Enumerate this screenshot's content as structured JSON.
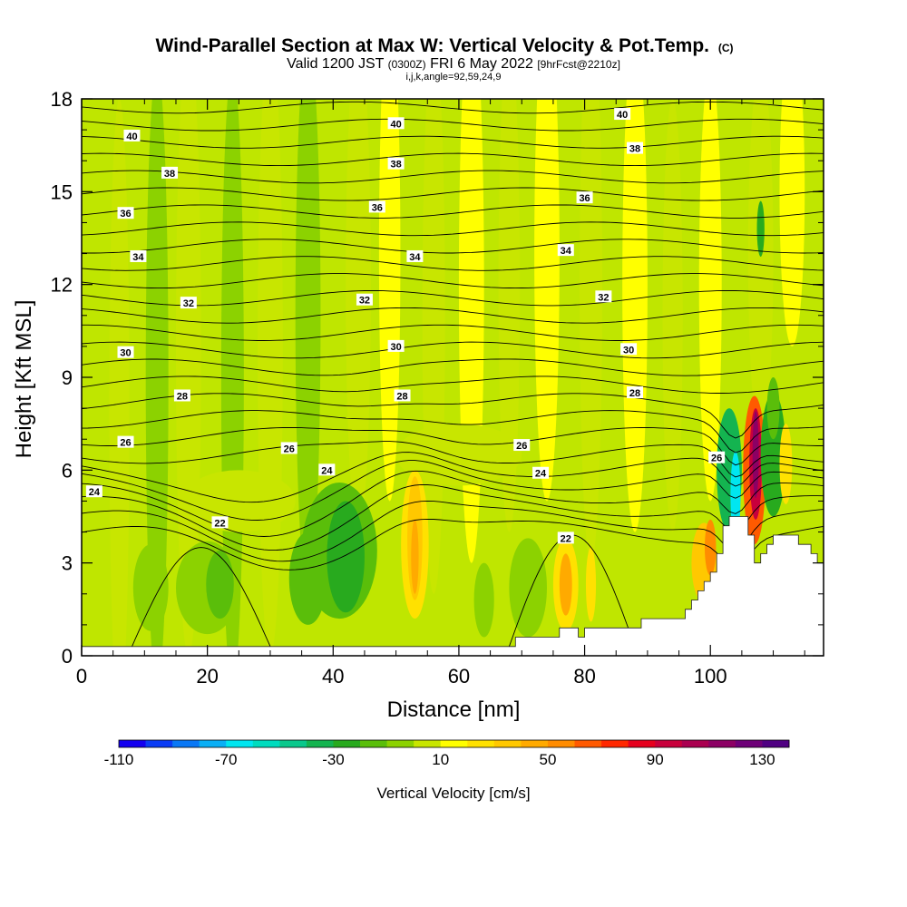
{
  "header": {
    "title_main": "Wind-Parallel Section at Max W: Vertical Velocity & Pot.Temp.",
    "title_mark": "(C)",
    "valid_pre": "Valid 1200 JST",
    "valid_utc": "(0300Z)",
    "valid_date": "FRI 6 May 2022",
    "valid_fcst": "[9hrFcst@2210z]",
    "indices": "i,j,k,angle=92,59,24,9"
  },
  "chart_data": {
    "type": "heatmap",
    "xlabel": "Distance [nm]",
    "ylabel": "Height [Kft MSL]",
    "xlim": [
      0,
      118
    ],
    "ylim": [
      0,
      18
    ],
    "x_ticks": [
      0,
      20,
      40,
      60,
      80,
      100
    ],
    "x_tick_labels": [
      "0",
      "20",
      "40",
      "60",
      "80",
      "100"
    ],
    "y_ticks": [
      0,
      3,
      6,
      9,
      12,
      15,
      18
    ],
    "y_tick_labels": [
      "0",
      "3",
      "6",
      "9",
      "12",
      "15",
      "18"
    ],
    "colorbar": {
      "title": "Vertical Velocity [cm/s]",
      "min": -110,
      "max": 140,
      "step": 10,
      "tick_values": [
        -110,
        -70,
        -30,
        10,
        50,
        90,
        130
      ],
      "tick_labels": [
        "-110",
        "-70",
        "-30",
        "10",
        "50",
        "90",
        "130"
      ],
      "colors": [
        "#1400f0",
        "#0a3cf5",
        "#0a78f5",
        "#0aaff5",
        "#00e6f0",
        "#00dcbe",
        "#0ac88c",
        "#14b450",
        "#28aa1e",
        "#5abe0a",
        "#8cd200",
        "#c8e600",
        "#ffff00",
        "#ffe100",
        "#ffc800",
        "#ffaa00",
        "#ff8c00",
        "#ff5a00",
        "#ff2800",
        "#e6001e",
        "#c8003c",
        "#aa0050",
        "#8c0064",
        "#6e0078",
        "#500082"
      ]
    },
    "theta_contours": {
      "units": "C",
      "levels": [
        22,
        24,
        26,
        28,
        30,
        32,
        34,
        36,
        38,
        40
      ],
      "labels": [
        {
          "text": "22",
          "x": 22,
          "y": 4.3
        },
        {
          "text": "22",
          "x": 77,
          "y": 3.8
        },
        {
          "text": "24",
          "x": 2,
          "y": 5.3
        },
        {
          "text": "24",
          "x": 39,
          "y": 6.0
        },
        {
          "text": "24",
          "x": 73,
          "y": 5.9
        },
        {
          "text": "26",
          "x": 7,
          "y": 6.9
        },
        {
          "text": "26",
          "x": 33,
          "y": 6.7
        },
        {
          "text": "26",
          "x": 70,
          "y": 6.8
        },
        {
          "text": "26",
          "x": 101,
          "y": 6.4
        },
        {
          "text": "28",
          "x": 16,
          "y": 8.4
        },
        {
          "text": "28",
          "x": 51,
          "y": 8.4
        },
        {
          "text": "28",
          "x": 88,
          "y": 8.5
        },
        {
          "text": "30",
          "x": 7,
          "y": 9.8
        },
        {
          "text": "30",
          "x": 50,
          "y": 10.0
        },
        {
          "text": "30",
          "x": 87,
          "y": 9.9
        },
        {
          "text": "32",
          "x": 17,
          "y": 11.4
        },
        {
          "text": "32",
          "x": 45,
          "y": 11.5
        },
        {
          "text": "32",
          "x": 83,
          "y": 11.6
        },
        {
          "text": "34",
          "x": 9,
          "y": 12.9
        },
        {
          "text": "34",
          "x": 53,
          "y": 12.9
        },
        {
          "text": "34",
          "x": 77,
          "y": 13.1
        },
        {
          "text": "36",
          "x": 7,
          "y": 14.3
        },
        {
          "text": "36",
          "x": 47,
          "y": 14.5
        },
        {
          "text": "36",
          "x": 80,
          "y": 14.8
        },
        {
          "text": "38",
          "x": 14,
          "y": 15.6
        },
        {
          "text": "38",
          "x": 50,
          "y": 15.9
        },
        {
          "text": "38",
          "x": 88,
          "y": 16.4
        },
        {
          "text": "40",
          "x": 8,
          "y": 16.8
        },
        {
          "text": "40",
          "x": 50,
          "y": 17.2
        },
        {
          "text": "40",
          "x": 86,
          "y": 17.5
        }
      ]
    },
    "terrain": [
      [
        0,
        0.3
      ],
      [
        68,
        0.3
      ],
      [
        69,
        0.6
      ],
      [
        75,
        0.6
      ],
      [
        76,
        0.9
      ],
      [
        78,
        0.9
      ],
      [
        79,
        0.6
      ],
      [
        80,
        0.9
      ],
      [
        88,
        0.9
      ],
      [
        89,
        1.2
      ],
      [
        95,
        1.2
      ],
      [
        96,
        1.5
      ],
      [
        97,
        1.8
      ],
      [
        98,
        2.1
      ],
      [
        99,
        2.4
      ],
      [
        100,
        2.7
      ],
      [
        101,
        3.3
      ],
      [
        102,
        4.2
      ],
      [
        103,
        4.5
      ],
      [
        105,
        4.5
      ],
      [
        106,
        3.9
      ],
      [
        107,
        3.0
      ],
      [
        108,
        3.3
      ],
      [
        109,
        3.6
      ],
      [
        110,
        3.9
      ],
      [
        113,
        3.9
      ],
      [
        114,
        3.6
      ],
      [
        116,
        3.3
      ],
      [
        117,
        3.0
      ],
      [
        118,
        3.0
      ]
    ]
  }
}
